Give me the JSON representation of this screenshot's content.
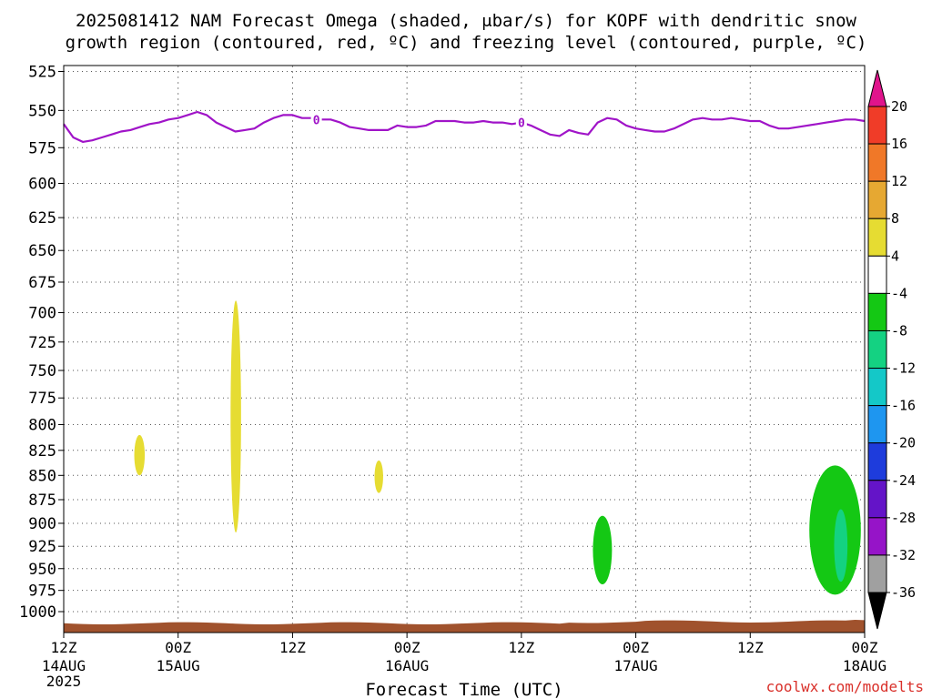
{
  "title_line1": "2025081412 NAM Forecast Omega (shaded, μbar/s) for KOPF with dendritic snow",
  "title_line2": "growth region (contoured, red, ºC) and freezing level (contoured, purple, ºC)",
  "credit": "coolwx.com/modelts",
  "chart_data": {
    "type": "heatmap",
    "title": "2025081412 NAM Forecast Omega (shaded, μbar/s) for KOPF with dendritic snow growth region (contoured, red, ºC) and freezing level (contoured, purple, ºC)",
    "xlabel": "Forecast Time (UTC)",
    "ylabel": "",
    "x_unit": "forecast hour from 2025-08-14 12Z",
    "x_range": [
      0,
      84
    ],
    "y_range": [
      1000,
      525
    ],
    "y_ticks": [
      525,
      550,
      575,
      600,
      625,
      650,
      675,
      700,
      725,
      750,
      775,
      800,
      825,
      850,
      875,
      900,
      925,
      950,
      975,
      1000
    ],
    "x_ticks": [
      {
        "hour": 0,
        "l1": "12Z",
        "l2": "14AUG",
        "l3": "2025"
      },
      {
        "hour": 12,
        "l1": "00Z",
        "l2": "15AUG",
        "l3": ""
      },
      {
        "hour": 24,
        "l1": "12Z",
        "l2": "",
        "l3": ""
      },
      {
        "hour": 36,
        "l1": "00Z",
        "l2": "16AUG",
        "l3": ""
      },
      {
        "hour": 48,
        "l1": "12Z",
        "l2": "",
        "l3": ""
      },
      {
        "hour": 60,
        "l1": "00Z",
        "l2": "17AUG",
        "l3": ""
      },
      {
        "hour": 72,
        "l1": "12Z",
        "l2": "",
        "l3": ""
      },
      {
        "hour": 84,
        "l1": "00Z",
        "l2": "18AUG",
        "l3": ""
      }
    ],
    "grid": true,
    "colorbar": {
      "labels": [
        "20",
        "16",
        "12",
        "8",
        "4",
        "-4",
        "-8",
        "-12",
        "-16",
        "-20",
        "-24",
        "-28",
        "-32",
        "-36"
      ],
      "top_color": "#e0148c",
      "bins": [
        {
          "lo": 16,
          "hi": 20,
          "color": "#f03c28"
        },
        {
          "lo": 12,
          "hi": 16,
          "color": "#f07828"
        },
        {
          "lo": 8,
          "hi": 12,
          "color": "#e6a832"
        },
        {
          "lo": 4,
          "hi": 8,
          "color": "#e6dc32"
        },
        {
          "lo": -4,
          "hi": 4,
          "color": "#ffffff"
        },
        {
          "lo": -8,
          "hi": -4,
          "color": "#14c814"
        },
        {
          "lo": -12,
          "hi": -8,
          "color": "#14d282"
        },
        {
          "lo": -16,
          "hi": -12,
          "color": "#14c8c8"
        },
        {
          "lo": -20,
          "hi": -16,
          "color": "#1e96f0"
        },
        {
          "lo": -24,
          "hi": -20,
          "color": "#1e3cdc"
        },
        {
          "lo": -28,
          "hi": -24,
          "color": "#6414c8"
        },
        {
          "lo": -32,
          "hi": -28,
          "color": "#9614c8"
        },
        {
          "lo": -36,
          "hi": -32,
          "color": "#a0a0a0"
        }
      ],
      "bottom_color": "#000000"
    },
    "freezing_level": {
      "color": "#a014c8",
      "label": "0",
      "label_hours": [
        26.5,
        48
      ],
      "hours": [
        0,
        1,
        2,
        3,
        4,
        5,
        6,
        7,
        8,
        9,
        10,
        11,
        12,
        13,
        14,
        15,
        16,
        17,
        18,
        19,
        20,
        21,
        22,
        23,
        24,
        25,
        26,
        27,
        28,
        29,
        30,
        31,
        32,
        33,
        34,
        35,
        36,
        37,
        38,
        39,
        40,
        41,
        42,
        43,
        44,
        45,
        46,
        47,
        48,
        49,
        50,
        51,
        52,
        53,
        54,
        55,
        56,
        57,
        58,
        59,
        60,
        61,
        62,
        63,
        64,
        65,
        66,
        67,
        68,
        69,
        70,
        71,
        72,
        73,
        74,
        75,
        76,
        77,
        78,
        79,
        80,
        81,
        82,
        83,
        84
      ],
      "pressures": [
        559,
        568,
        571,
        570,
        568,
        566,
        564,
        563,
        561,
        559,
        558,
        556,
        555,
        553,
        551,
        553,
        558,
        561,
        564,
        563,
        562,
        558,
        555,
        553,
        553,
        555,
        555,
        556,
        556,
        558,
        561,
        562,
        563,
        563,
        563,
        560,
        561,
        561,
        560,
        557,
        557,
        557,
        558,
        558,
        557,
        558,
        558,
        559,
        558,
        560,
        563,
        566,
        567,
        563,
        565,
        566,
        558,
        555,
        556,
        560,
        562,
        563,
        564,
        564,
        562,
        559,
        556,
        555,
        556,
        556,
        555,
        556,
        557,
        557,
        560,
        562,
        562,
        561,
        560,
        559,
        558,
        557,
        556,
        556,
        557
      ]
    },
    "omega_regions": [
      {
        "value_bin": "4 to 8",
        "color": "#e6dc32",
        "hour_range": [
          7.4,
          8.5
        ],
        "pressure_range": [
          810,
          850
        ]
      },
      {
        "value_bin": "4 to 8",
        "color": "#e6dc32",
        "hour_range": [
          17.5,
          18.6
        ],
        "pressure_range": [
          690,
          910
        ]
      },
      {
        "value_bin": "4 to 8",
        "color": "#e6dc32",
        "hour_range": [
          32.6,
          33.5
        ],
        "pressure_range": [
          835,
          868
        ]
      },
      {
        "value_bin": "-8 to -4",
        "color": "#14c814",
        "hour_range": [
          55.5,
          57.5
        ],
        "pressure_range": [
          892,
          968
        ]
      },
      {
        "value_bin": "-8 to -4",
        "color": "#14c814",
        "hour_range": [
          78.2,
          83.6
        ],
        "pressure_range": [
          840,
          980
        ]
      },
      {
        "value_bin": "-12 to -8",
        "color": "#14d282",
        "hour_range": [
          80.8,
          82.2
        ],
        "pressure_range": [
          885,
          965
        ]
      }
    ],
    "terrain": {
      "color": "#a0522d",
      "surface_pressure_approx": 1014
    }
  }
}
